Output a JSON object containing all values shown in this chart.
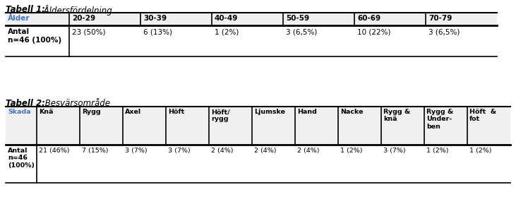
{
  "title1_bold": "Tabell 1:",
  "title1_italic": " Åldersfördelning",
  "title2_bold": "Tabell 2:",
  "title2_italic": " Besvärsområde",
  "t1_headers": [
    "Ålder",
    "20-29",
    "30-39",
    "40-49",
    "50-59",
    "60-69",
    "70-79"
  ],
  "t1_row_label": "Antal\nn=46 (100%)",
  "t1_row_data": [
    "23 (50%)",
    "6 (13%)",
    "1 (2%)",
    "3 (6,5%)",
    "10 (22%)",
    "3 (6,5%)"
  ],
  "t2_headers": [
    "Skada",
    "Knä",
    "Rygg",
    "Axel",
    "Höft",
    "Höft/\nrygg",
    "Ljumske",
    "Hand",
    "Nacke",
    "Rygg &\nknä",
    "Rygg &\nUnder-\nben",
    "Höft  &\nfot"
  ],
  "t2_row_label": "Antal\nn=46\n(100%)",
  "t2_row_data": [
    "21 (46%)",
    "7 (15%)",
    "3 (7%)",
    "3 (7%)",
    "2 (4%)",
    "2 (4%)",
    "2 (4%)",
    "1 (2%)",
    "3 (7%)",
    "1 (2%)",
    "1 (2%)"
  ],
  "blue": "#4472C4",
  "black": "#000000",
  "white": "#FFFFFF",
  "light_gray": "#F0F0F0",
  "mid_gray": "#D8D8D8",
  "fig_w": 7.31,
  "fig_h": 2.89,
  "dpi": 100
}
